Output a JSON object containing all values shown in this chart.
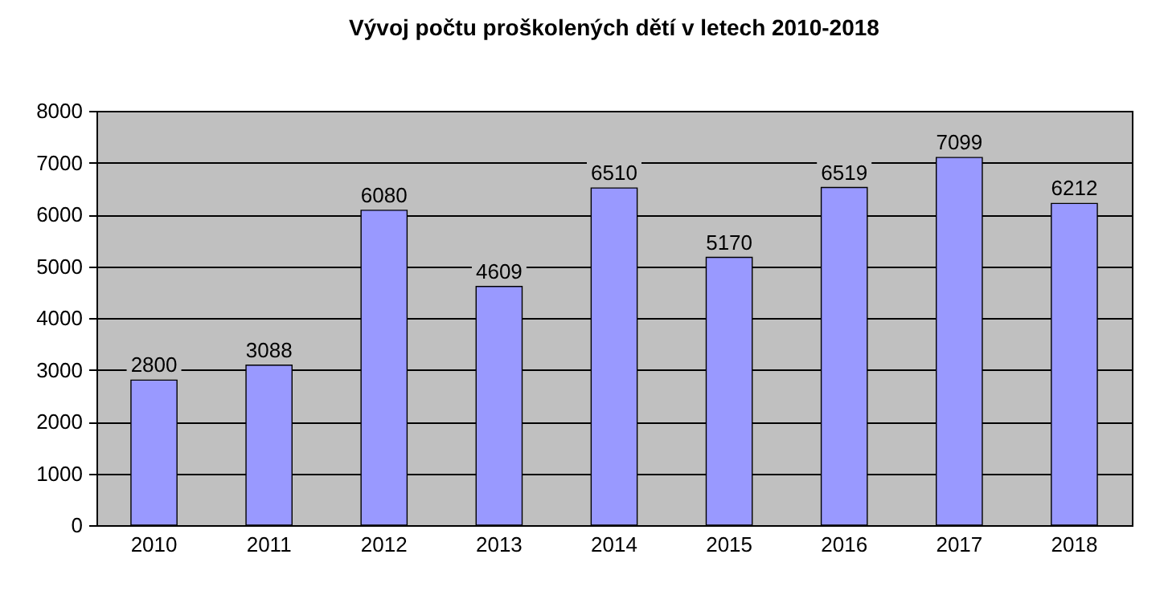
{
  "chart_data": {
    "type": "bar",
    "title": "Vývoj počtu proškolených dětí v letech 2010-2018",
    "categories": [
      "2010",
      "2011",
      "2012",
      "2013",
      "2014",
      "2015",
      "2016",
      "2017",
      "2018"
    ],
    "values": [
      2800,
      3088,
      6080,
      4609,
      6510,
      5170,
      6519,
      7099,
      6212
    ],
    "color": "#9999ff",
    "ylim": [
      0,
      8000
    ],
    "yticks": [
      0,
      1000,
      2000,
      3000,
      4000,
      5000,
      6000,
      7000,
      8000
    ],
    "grid": "y",
    "data_labels": true
  }
}
